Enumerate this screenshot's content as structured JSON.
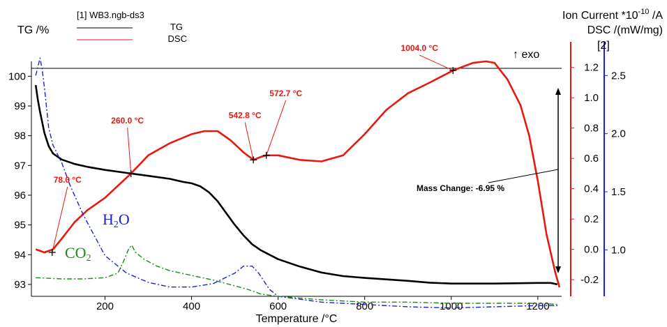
{
  "chart_data": {
    "type": "line",
    "file_legend": "[1] WB3.ngb-ds3",
    "legend": [
      {
        "name": "TG",
        "color": "#000000"
      },
      {
        "name": "DSC",
        "color": "#e8180f"
      }
    ],
    "xlabel": "Temperature /°C",
    "xlim": [
      30,
      1255
    ],
    "xticks": [
      200,
      400,
      600,
      800,
      1000,
      1200
    ],
    "y_left": {
      "label": "TG /%",
      "lim": [
        92.6,
        100.5
      ],
      "ticks": [
        93,
        94,
        95,
        96,
        97,
        98,
        99,
        100
      ]
    },
    "y_dsc": {
      "label": "DSC /(mW/mg)",
      "lim": [
        -0.31,
        1.3
      ],
      "ticks": [
        "-0.2",
        "0.0",
        "0.2",
        "0.4",
        "0.6",
        "0.8",
        "1.0",
        "1.2"
      ],
      "tick_values": [
        -0.2,
        0,
        0.2,
        0.4,
        0.6,
        0.8,
        1.0,
        1.2
      ]
    },
    "y_ion": {
      "label": "Ion Current *10-10 /A",
      "label_base": "Ion Current *10",
      "label_exp": "-10",
      "label_unit": " /A",
      "index_label": "[2]",
      "lim": [
        0.6,
        2.7
      ],
      "ticks": [
        "1.0",
        "1.5",
        "2.0",
        "2.5"
      ],
      "tick_values": [
        1.0,
        1.5,
        2.0,
        2.5
      ]
    },
    "exo_label": "↑ exo",
    "mass_change_label": "Mass Change: -6.95 %",
    "series": [
      {
        "name": "TG",
        "axis": "tg",
        "color": "#000000",
        "x": [
          40,
          45,
          50,
          60,
          70,
          80,
          100,
          130,
          160,
          200,
          250,
          300,
          350,
          380,
          400,
          420,
          440,
          460,
          480,
          500,
          520,
          540,
          560,
          580,
          600,
          650,
          700,
          750,
          800,
          900,
          950,
          1000,
          1100,
          1200,
          1230,
          1245
        ],
        "y": [
          99.7,
          99.2,
          98.8,
          98.1,
          97.65,
          97.4,
          97.2,
          97.05,
          96.95,
          96.85,
          96.75,
          96.65,
          96.55,
          96.45,
          96.4,
          96.3,
          96.1,
          95.8,
          95.4,
          95.0,
          94.65,
          94.35,
          94.15,
          94.0,
          93.85,
          93.6,
          93.4,
          93.28,
          93.22,
          93.12,
          93.06,
          93.03,
          93.03,
          93.05,
          93.05,
          93.0
        ]
      },
      {
        "name": "DSC",
        "axis": "dsc",
        "color": "#e8180f",
        "x": [
          40,
          60,
          80,
          100,
          130,
          160,
          200,
          230,
          260,
          300,
          350,
          400,
          430,
          460,
          490,
          520,
          543,
          560,
          573,
          600,
          650,
          700,
          750,
          800,
          850,
          900,
          950,
          1004,
          1050,
          1080,
          1100,
          1130,
          1160,
          1180,
          1200,
          1220,
          1240,
          1250
        ],
        "y": [
          0.0,
          -0.02,
          0.0,
          0.07,
          0.18,
          0.26,
          0.34,
          0.42,
          0.5,
          0.62,
          0.7,
          0.76,
          0.78,
          0.78,
          0.72,
          0.64,
          0.59,
          0.61,
          0.62,
          0.62,
          0.59,
          0.58,
          0.62,
          0.76,
          0.92,
          1.03,
          1.1,
          1.18,
          1.23,
          1.24,
          1.23,
          1.12,
          0.95,
          0.75,
          0.45,
          0.1,
          -0.15,
          -0.25
        ]
      },
      {
        "name": "H2O",
        "axis": "ion",
        "color": "#1a22d6",
        "x": [
          40,
          50,
          55,
          60,
          70,
          80,
          100,
          120,
          150,
          200,
          250,
          300,
          350,
          400,
          450,
          500,
          520,
          540,
          555,
          580,
          600,
          700,
          800,
          900,
          1000,
          1100,
          1200,
          1250
        ],
        "y": [
          2.5,
          2.65,
          2.55,
          2.4,
          2.05,
          1.9,
          1.75,
          1.55,
          1.3,
          0.95,
          0.8,
          0.72,
          0.68,
          0.68,
          0.71,
          0.8,
          0.86,
          0.86,
          0.8,
          0.66,
          0.6,
          0.55,
          0.53,
          0.51,
          0.5,
          0.51,
          0.52,
          0.52
        ]
      },
      {
        "name": "CO2",
        "axis": "ion",
        "color": "#1a8a1a",
        "x": [
          40,
          100,
          150,
          200,
          230,
          245,
          255,
          262,
          270,
          290,
          320,
          350,
          400,
          450,
          500,
          530,
          560,
          600,
          700,
          800,
          900,
          1000,
          1100,
          1200,
          1250
        ],
        "y": [
          0.76,
          0.75,
          0.75,
          0.76,
          0.8,
          0.92,
          1.01,
          1.04,
          0.98,
          0.92,
          0.86,
          0.82,
          0.78,
          0.74,
          0.69,
          0.66,
          0.62,
          0.6,
          0.57,
          0.55,
          0.55,
          0.54,
          0.54,
          0.54,
          0.53
        ]
      }
    ],
    "gas_labels": [
      {
        "text": "H2O",
        "base": "H",
        "sub": "2",
        "tail": "O",
        "color": "#1a22d6"
      },
      {
        "text": "CO2",
        "base": "CO",
        "sub": "2",
        "tail": "",
        "color": "#1a8a1a"
      }
    ],
    "annotations": [
      {
        "text": "78.0 °C",
        "x": 78.0,
        "y": -0.02
      },
      {
        "text": "260.0 °C",
        "x": 260.0,
        "y": 0.5
      },
      {
        "text": "542.8 °C",
        "x": 542.8,
        "y": 0.59
      },
      {
        "text": "572.7 °C",
        "x": 572.7,
        "y": 0.62
      },
      {
        "text": "1004.0 °C",
        "x": 1004.0,
        "y": 1.18
      }
    ],
    "grid": false
  }
}
